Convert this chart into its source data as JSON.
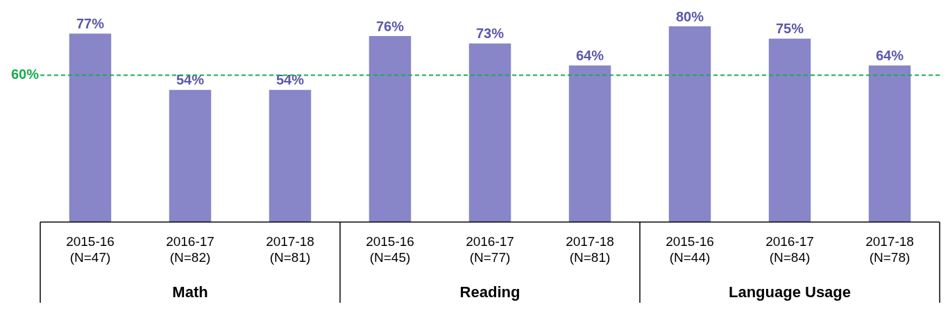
{
  "chart_data": {
    "type": "bar",
    "categories": [
      "2015-16\n(N=47)",
      "2016-17\n(N=82)",
      "2017-18\n(N=81)",
      "2015-16\n(N=45)",
      "2016-17\n(N=77)",
      "2017-18\n(N=81)",
      "2015-16\n(N=44)",
      "2016-17\n(N=84)",
      "2017-18\n(N=78)"
    ],
    "values": [
      77,
      54,
      54,
      76,
      73,
      64,
      80,
      75,
      64
    ],
    "value_labels": [
      "77%",
      "54%",
      "54%",
      "76%",
      "73%",
      "64%",
      "80%",
      "75%",
      "64%"
    ],
    "color": "#8886c8",
    "tick_labels": "x",
    "grid": false,
    "legend": false,
    "ref_lines": [
      {
        "axis": "y",
        "value": 60,
        "label": "60%",
        "color": "#1aaa50",
        "line_style": "dashed"
      }
    ],
    "annotations": [
      "Math",
      "Reading",
      "Language Usage"
    ]
  }
}
